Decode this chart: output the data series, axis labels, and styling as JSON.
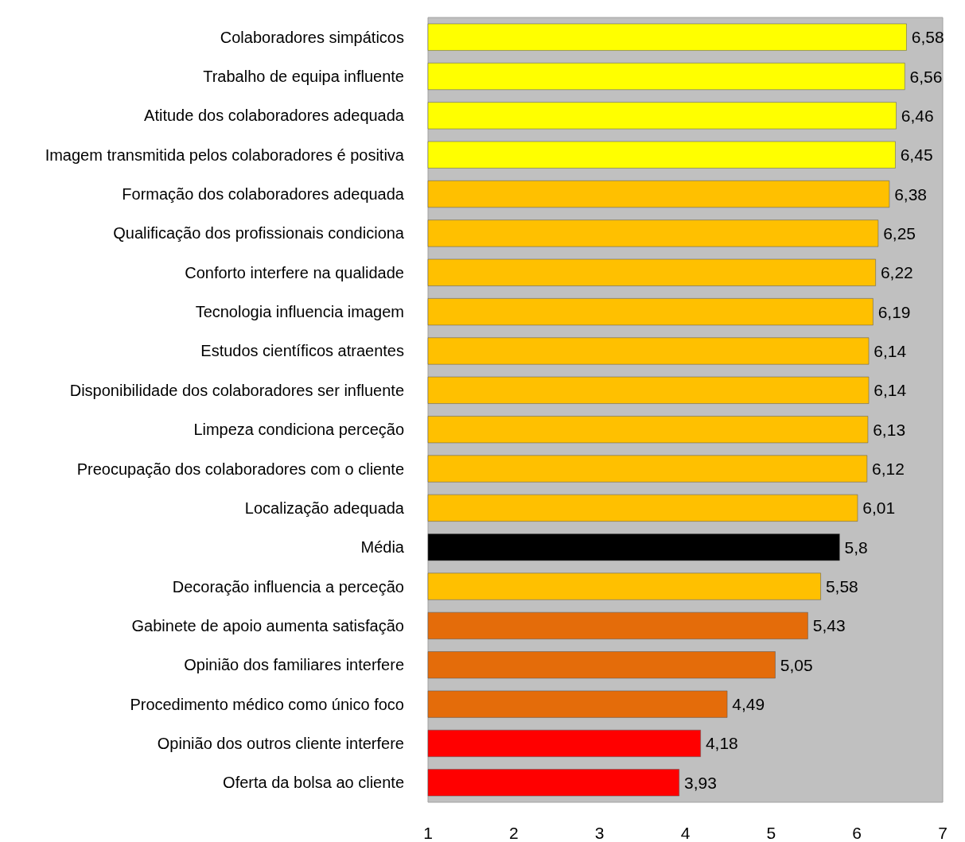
{
  "chart_data": {
    "type": "bar",
    "orientation": "horizontal",
    "categories": [
      "Colaboradores simpáticos",
      "Trabalho de equipa influente",
      "Atitude dos colaboradores adequada",
      "Imagem transmitida pelos colaboradores é positiva",
      "Formação dos colaboradores adequada",
      "Qualificação dos profissionais condiciona",
      "Conforto interfere na qualidade",
      "Tecnologia influencia imagem",
      "Estudos científicos atraentes",
      "Disponibilidade dos colaboradores ser influente",
      "Limpeza condiciona perceção",
      "Preocupação dos colaboradores com o cliente",
      "Localização adequada",
      "Média",
      "Decoração influencia a perceção",
      "Gabinete de apoio aumenta satisfação",
      "Opinião dos familiares interfere",
      "Procedimento médico como único foco",
      "Opinião dos outros cliente interfere",
      "Oferta da bolsa ao cliente"
    ],
    "values": [
      6.58,
      6.56,
      6.46,
      6.45,
      6.38,
      6.25,
      6.22,
      6.19,
      6.14,
      6.14,
      6.13,
      6.12,
      6.01,
      5.8,
      5.58,
      5.43,
      5.05,
      4.49,
      4.18,
      3.93
    ],
    "value_labels": [
      "6,58",
      "6,56",
      "6,46",
      "6,45",
      "6,38",
      "6,25",
      "6,22",
      "6,19",
      "6,14",
      "6,14",
      "6,13",
      "6,12",
      "6,01",
      "5,8",
      "5,58",
      "5,43",
      "5,05",
      "4,49",
      "4,18",
      "3,93"
    ],
    "colors": [
      "#ffff00",
      "#ffff00",
      "#ffff00",
      "#ffff00",
      "#ffc000",
      "#ffc000",
      "#ffc000",
      "#ffc000",
      "#ffc000",
      "#ffc000",
      "#ffc000",
      "#ffc000",
      "#ffc000",
      "#000000",
      "#ffc000",
      "#e46c0a",
      "#e46c0a",
      "#e46c0a",
      "#ff0000",
      "#ff0000"
    ],
    "xlim": [
      1,
      7
    ],
    "xticks": [
      1,
      2,
      3,
      4,
      5,
      6,
      7
    ]
  }
}
